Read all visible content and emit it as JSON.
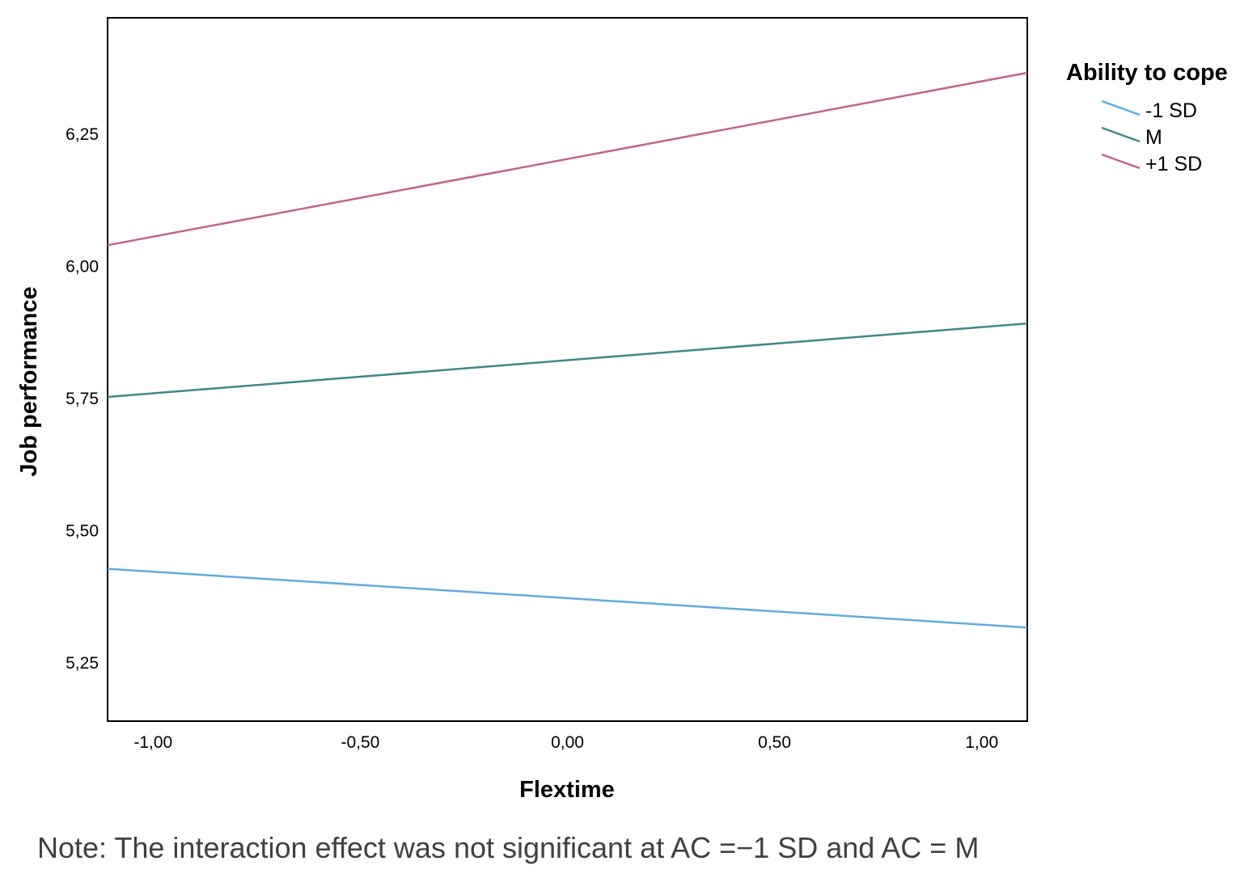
{
  "chart_data": {
    "type": "line",
    "title": "",
    "xlabel": "Flextime",
    "ylabel": "Job performance",
    "x": [
      -1.11,
      1.11
    ],
    "xlim": [
      -1.11,
      1.11
    ],
    "ylim": [
      5.14,
      6.47
    ],
    "xticks": [
      -1.0,
      -0.5,
      0.0,
      0.5,
      1.0
    ],
    "xtick_labels": [
      "-1,00",
      "-0,50",
      "0,00",
      "0,50",
      "1,00"
    ],
    "yticks": [
      5.25,
      5.5,
      5.75,
      6.0,
      6.25
    ],
    "ytick_labels": [
      "5,25",
      "5,50",
      "5,75",
      "6,00",
      "6,25"
    ],
    "grid": false,
    "legend": {
      "title": "Ability to cope",
      "placement": "right-top"
    },
    "series": [
      {
        "name": "-1 SD",
        "color": "#5dade2",
        "values": [
          5.428,
          5.317
        ]
      },
      {
        "name": "M",
        "color": "#3a8a86",
        "values": [
          5.753,
          5.892
        ]
      },
      {
        "name": "+1 SD",
        "color": "#c0648f",
        "values": [
          6.04,
          6.366
        ]
      }
    ]
  },
  "note": "Note: The interaction effect was not significant at AC =−1 SD and AC = M"
}
